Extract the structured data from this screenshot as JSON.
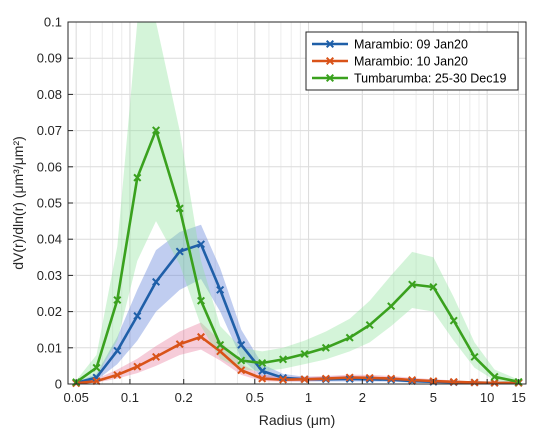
{
  "chart_data": {
    "type": "line",
    "xscale": "log",
    "xlim": [
      0.045,
      16.5
    ],
    "ylim": [
      0,
      0.1
    ],
    "grid": true,
    "legend_position": "top-right",
    "xticks": [
      {
        "v": 0.05,
        "label": "0.05"
      },
      {
        "v": 0.1,
        "label": "0.1"
      },
      {
        "v": 0.2,
        "label": "0.2"
      },
      {
        "v": 0.5,
        "label": "0.5"
      },
      {
        "v": 1,
        "label": "1"
      },
      {
        "v": 2,
        "label": "2"
      },
      {
        "v": 5,
        "label": "5"
      },
      {
        "v": 10,
        "label": "10"
      },
      {
        "v": 15,
        "label": "15"
      }
    ],
    "yticks": [
      {
        "v": 0,
        "label": "0"
      },
      {
        "v": 0.01,
        "label": "0.01"
      },
      {
        "v": 0.02,
        "label": "0.02"
      },
      {
        "v": 0.03,
        "label": "0.03"
      },
      {
        "v": 0.04,
        "label": "0.04"
      },
      {
        "v": 0.05,
        "label": "0.05"
      },
      {
        "v": 0.06,
        "label": "0.06"
      },
      {
        "v": 0.07,
        "label": "0.07"
      },
      {
        "v": 0.08,
        "label": "0.08"
      },
      {
        "v": 0.09,
        "label": "0.09"
      },
      {
        "v": 0.1,
        "label": "0.1"
      }
    ],
    "xlabel": "Radius (μm)",
    "ylabel": "dV(r)/dln(r) (μm³/μm²)",
    "series": [
      {
        "name": "Marambio: 09 Jan20",
        "color": "#1f5fa8",
        "band_color": "#5a7bd8",
        "x": [
          0.05,
          0.065,
          0.085,
          0.11,
          0.14,
          0.19,
          0.25,
          0.32,
          0.42,
          0.55,
          0.72,
          0.95,
          1.25,
          1.7,
          2.2,
          2.9,
          3.8,
          5.0,
          6.5,
          8.5,
          11.0,
          15.0
        ],
        "y": [
          0.0003,
          0.0018,
          0.0092,
          0.0188,
          0.0282,
          0.0366,
          0.0386,
          0.026,
          0.0108,
          0.0036,
          0.0017,
          0.0013,
          0.0013,
          0.0014,
          0.0013,
          0.0012,
          0.0008,
          0.0006,
          0.0005,
          0.0004,
          0.0003,
          0.0003
        ],
        "low": [
          0.0002,
          0.001,
          0.0055,
          0.012,
          0.02,
          0.026,
          0.029,
          0.02,
          0.007,
          0.002,
          0.0008,
          0.0007,
          0.0007,
          0.0007,
          0.0007,
          0.0006,
          0.0004,
          0.0003,
          0.0002,
          0.0002,
          0.0001,
          0.0001
        ],
        "high": [
          0.0005,
          0.0028,
          0.013,
          0.026,
          0.037,
          0.042,
          0.044,
          0.032,
          0.015,
          0.0055,
          0.0028,
          0.002,
          0.002,
          0.0022,
          0.002,
          0.0018,
          0.0013,
          0.001,
          0.0008,
          0.0006,
          0.0005,
          0.0005
        ]
      },
      {
        "name": "Marambio: 10 Jan20",
        "color": "#d95319",
        "band_color": "#e8789a",
        "x": [
          0.05,
          0.065,
          0.085,
          0.11,
          0.14,
          0.19,
          0.25,
          0.32,
          0.42,
          0.55,
          0.72,
          0.95,
          1.25,
          1.7,
          2.2,
          2.9,
          3.8,
          5.0,
          6.5,
          8.5,
          11.0,
          15.0
        ],
        "y": [
          0.0002,
          0.0008,
          0.0025,
          0.0048,
          0.0075,
          0.011,
          0.013,
          0.009,
          0.0038,
          0.0015,
          0.0012,
          0.0013,
          0.0015,
          0.0018,
          0.0017,
          0.0015,
          0.0011,
          0.0008,
          0.0006,
          0.0004,
          0.0003,
          0.0003
        ],
        "low": [
          0.0001,
          0.0004,
          0.0015,
          0.003,
          0.005,
          0.008,
          0.0095,
          0.0065,
          0.0025,
          0.0008,
          0.0006,
          0.0007,
          0.0009,
          0.0011,
          0.001,
          0.0009,
          0.0006,
          0.0004,
          0.0003,
          0.0002,
          0.0001,
          0.0001
        ],
        "high": [
          0.0004,
          0.0014,
          0.004,
          0.007,
          0.0105,
          0.0145,
          0.017,
          0.012,
          0.0055,
          0.0025,
          0.002,
          0.002,
          0.0022,
          0.0026,
          0.0025,
          0.0022,
          0.0017,
          0.0013,
          0.001,
          0.0007,
          0.0005,
          0.0005
        ]
      },
      {
        "name": "Tumbarumba: 25-30 Dec19",
        "color": "#3aa11e",
        "band_color": "#8fe39a",
        "x": [
          0.05,
          0.065,
          0.085,
          0.11,
          0.14,
          0.19,
          0.25,
          0.32,
          0.42,
          0.55,
          0.72,
          0.95,
          1.25,
          1.7,
          2.2,
          2.9,
          3.8,
          5.0,
          6.5,
          8.5,
          11.0,
          15.0
        ],
        "y": [
          0.0005,
          0.0045,
          0.0232,
          0.057,
          0.0701,
          0.0485,
          0.023,
          0.0108,
          0.0065,
          0.0058,
          0.0068,
          0.0083,
          0.01,
          0.0128,
          0.0163,
          0.0215,
          0.0275,
          0.0268,
          0.0175,
          0.0075,
          0.002,
          0.0006
        ],
        "low": [
          0.0002,
          0.002,
          0.012,
          0.034,
          0.045,
          0.033,
          0.016,
          0.007,
          0.004,
          0.0035,
          0.0042,
          0.0055,
          0.0068,
          0.009,
          0.0115,
          0.016,
          0.021,
          0.02,
          0.012,
          0.0045,
          0.001,
          0.0002
        ],
        "high": [
          0.001,
          0.008,
          0.038,
          0.1,
          0.1,
          0.07,
          0.034,
          0.016,
          0.01,
          0.009,
          0.01,
          0.012,
          0.0145,
          0.018,
          0.023,
          0.03,
          0.0365,
          0.035,
          0.024,
          0.0115,
          0.004,
          0.0012
        ]
      }
    ]
  }
}
